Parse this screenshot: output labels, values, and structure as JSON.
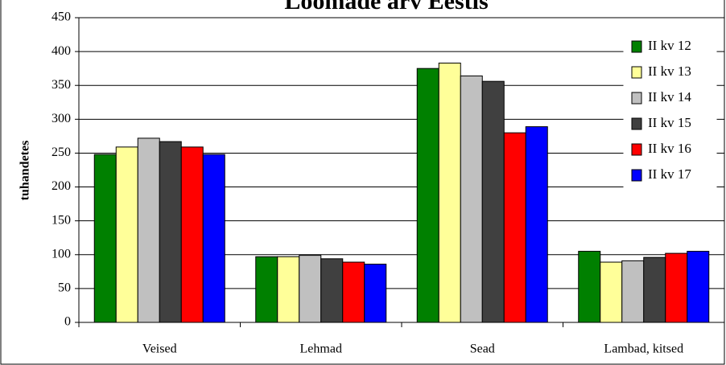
{
  "chart_data": {
    "type": "bar",
    "title": "Loomade arv Eestis",
    "y_label": "tuhandetes",
    "categories": [
      "Veised",
      "Lehmad",
      "Sead",
      "Lambad, kitsed"
    ],
    "series": [
      {
        "name": "II kv 12",
        "color": "#008000",
        "values": [
          248,
          97,
          375,
          105
        ]
      },
      {
        "name": "II kv 13",
        "color": "#ffff99",
        "values": [
          259,
          97,
          383,
          89
        ]
      },
      {
        "name": "II kv 14",
        "color": "#c0c0c0",
        "values": [
          272,
          99,
          364,
          91
        ]
      },
      {
        "name": "II kv 15",
        "color": "#404040",
        "values": [
          267,
          94,
          356,
          96
        ]
      },
      {
        "name": "II kv 16",
        "color": "#ff0000",
        "values": [
          259,
          89,
          280,
          102
        ]
      },
      {
        "name": "II kv 17",
        "color": "#0000ff",
        "values": [
          248,
          86,
          289,
          105
        ]
      }
    ],
    "ylim": [
      0,
      450
    ],
    "yticks": [
      0,
      50,
      100,
      150,
      200,
      250,
      300,
      350,
      400,
      450
    ],
    "grid": true,
    "legend": "right"
  }
}
